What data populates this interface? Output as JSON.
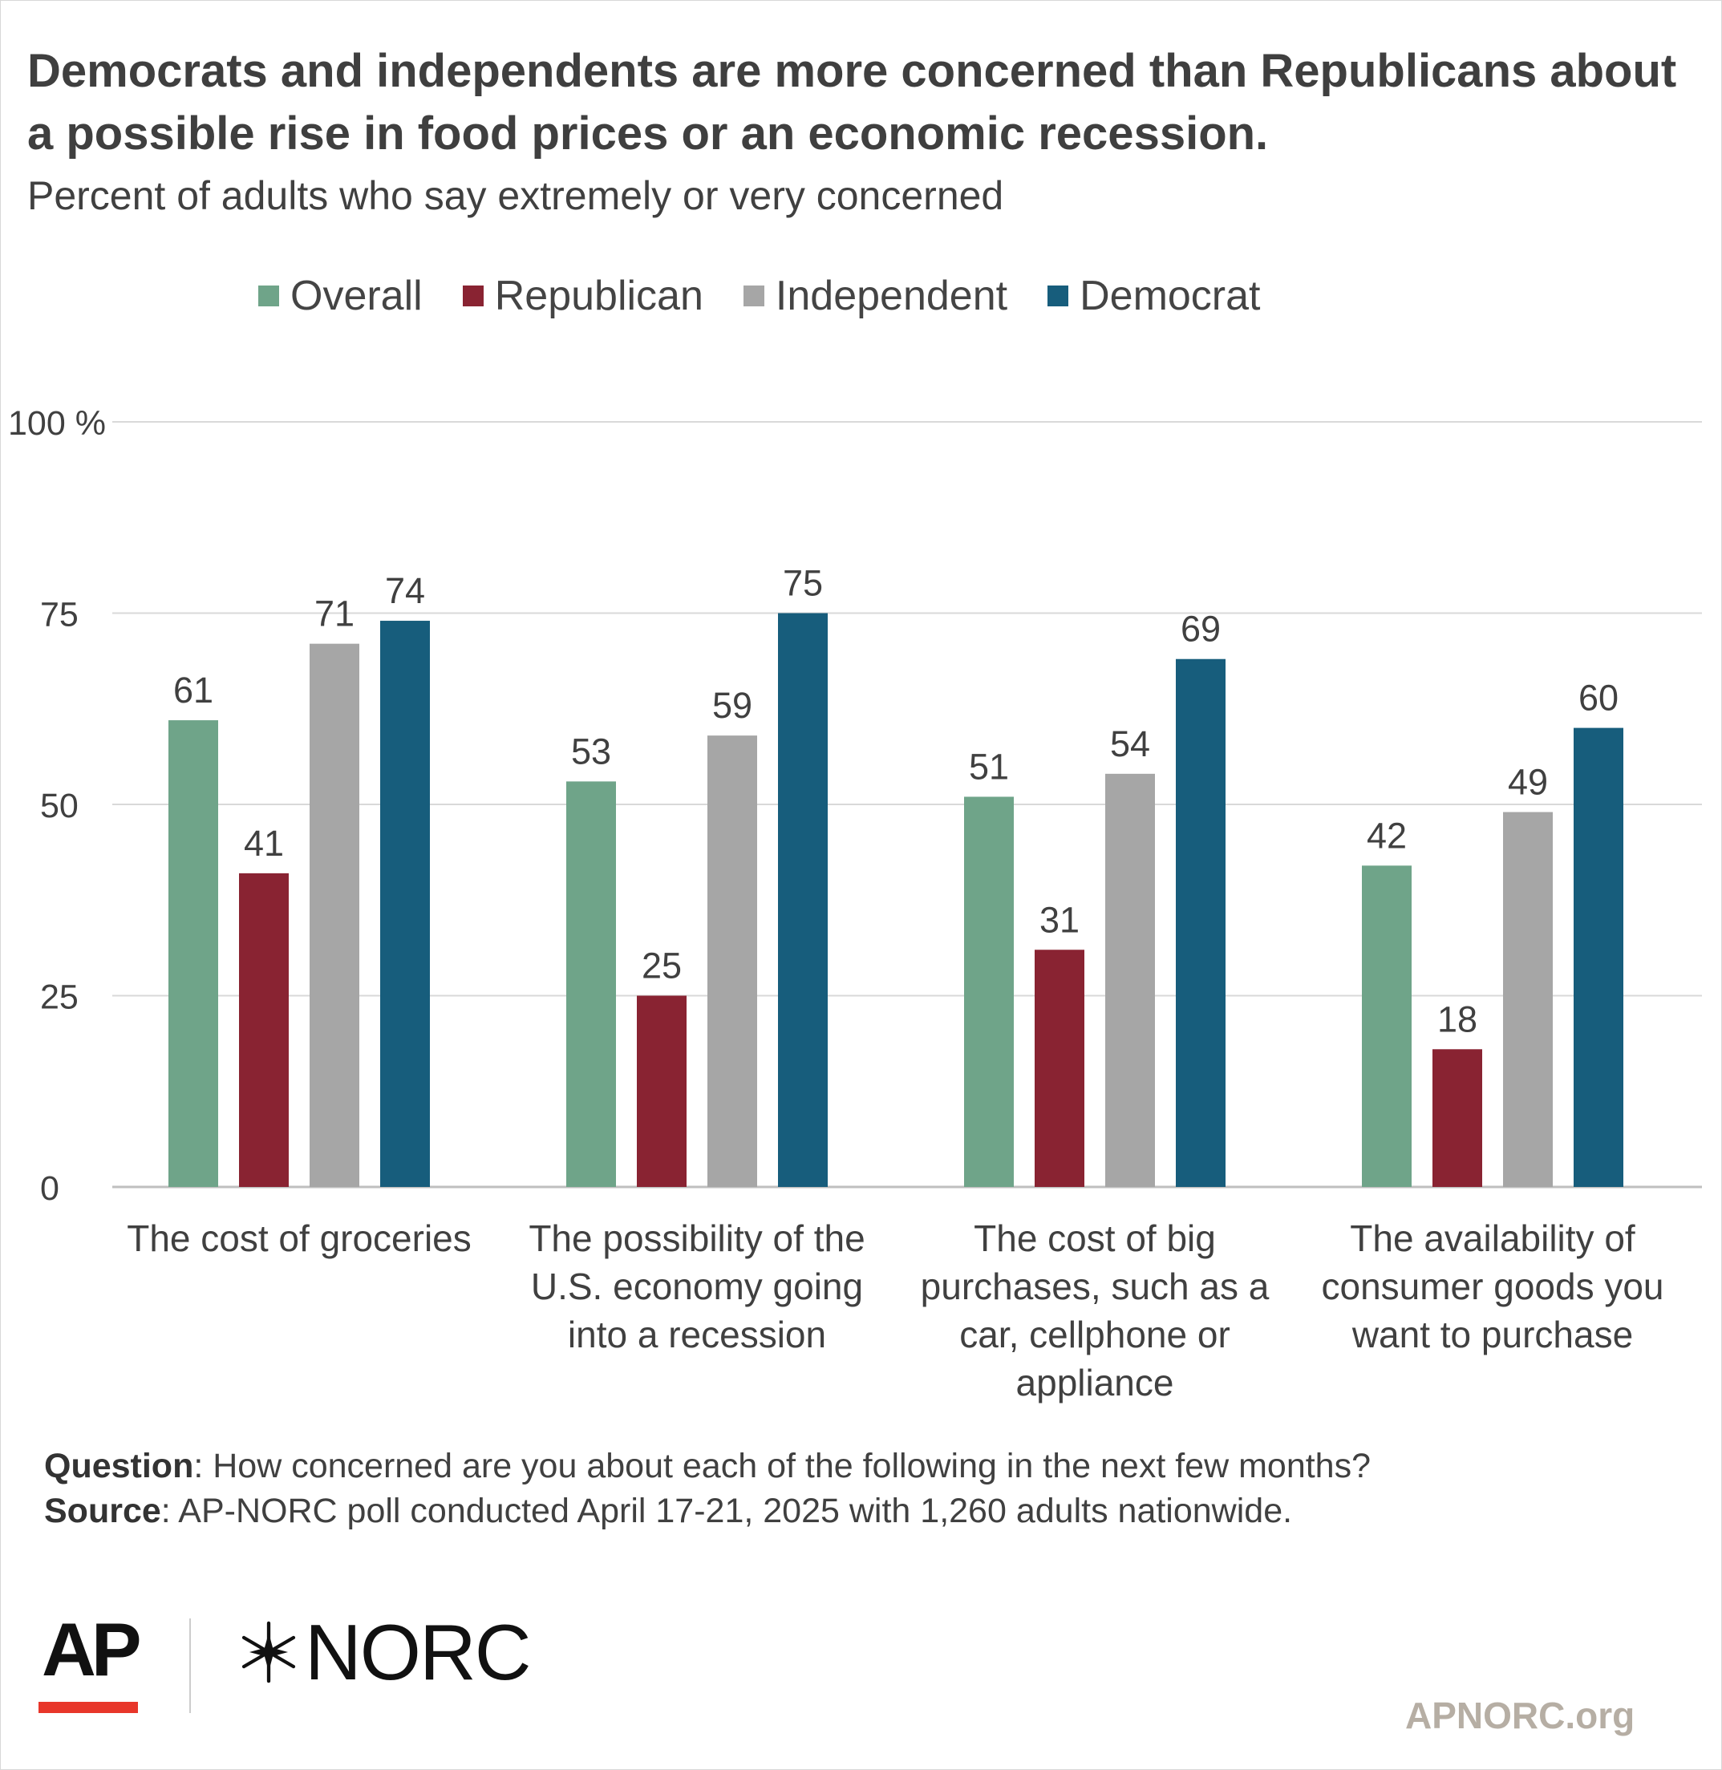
{
  "title": "Democrats and independents are more concerned than Republicans about a possible rise in food prices or an economic recession.",
  "subtitle": "Percent of adults who say extremely or very concerned",
  "footer": {
    "question_label": "Question",
    "question_text": ": How concerned are you about each of the following in the next few months?",
    "source_label": "Source",
    "source_text": ": AP-NORC poll conducted April 17-21, 2025 with 1,260 adults nationwide."
  },
  "logos": {
    "ap": "AP",
    "norc": "NORC",
    "site": "APNORC.org"
  },
  "colors": {
    "Overall": "#6fa489",
    "Republican": "#892332",
    "Independent": "#a6a6a6",
    "Democrat": "#175d7c",
    "grid": "#d9d9d9",
    "text": "#404040"
  },
  "chart_data": {
    "type": "bar",
    "categories": [
      [
        "The cost of groceries"
      ],
      [
        "The possibility of the",
        "U.S. economy going",
        "into a recession"
      ],
      [
        "The cost of big",
        "purchases, such as a",
        "car, cellphone or",
        "appliance"
      ],
      [
        "The availability of",
        "consumer goods you",
        "want to purchase"
      ]
    ],
    "series": [
      {
        "name": "Overall",
        "values": [
          61,
          53,
          51,
          42
        ]
      },
      {
        "name": "Republican",
        "values": [
          41,
          25,
          31,
          18
        ]
      },
      {
        "name": "Independent",
        "values": [
          71,
          59,
          54,
          49
        ]
      },
      {
        "name": "Democrat",
        "values": [
          74,
          75,
          69,
          60
        ]
      }
    ],
    "yticks": [
      {
        "value": 0,
        "label": "0"
      },
      {
        "value": 25,
        "label": "25"
      },
      {
        "value": 50,
        "label": "50"
      },
      {
        "value": 75,
        "label": "75"
      },
      {
        "value": 100,
        "label": "100 %"
      }
    ],
    "ylim": [
      0,
      100
    ],
    "grid": true,
    "legend_position": "top"
  }
}
